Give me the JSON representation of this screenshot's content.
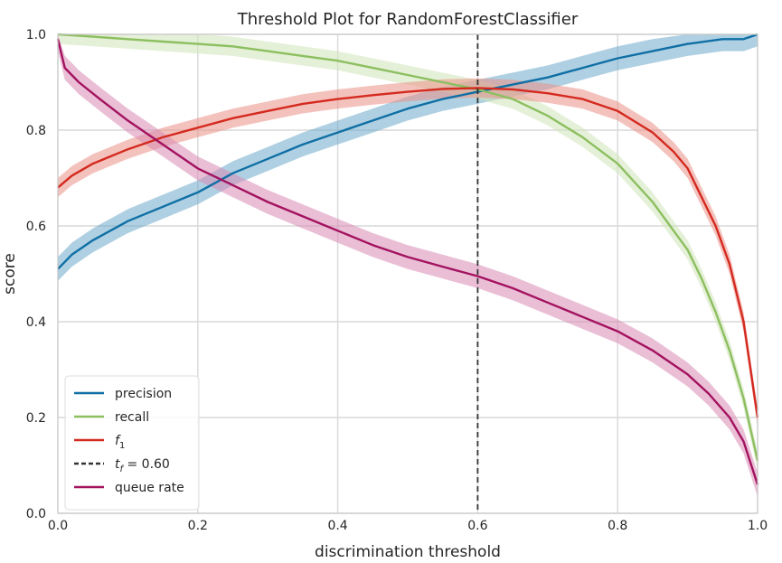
{
  "chart_data": {
    "type": "line",
    "title": "Threshold Plot for RandomForestClassifier",
    "xlabel": "discrimination threshold",
    "ylabel": "score",
    "xlim": [
      0.0,
      1.0
    ],
    "ylim": [
      0.0,
      1.0
    ],
    "xticks": [
      "0.0",
      "0.2",
      "0.4",
      "0.6",
      "0.8",
      "1.0"
    ],
    "yticks": [
      "0.0",
      "0.2",
      "0.4",
      "0.6",
      "0.8",
      "1.0"
    ],
    "grid": true,
    "legend_position": "lower-left",
    "threshold": {
      "value": 0.6,
      "label": "= 0.60",
      "var_main": "t",
      "var_sub": "f",
      "color": "#333333"
    },
    "series": [
      {
        "name": "precision",
        "color": "#0f6fa5",
        "band_color": "#6ea9cb",
        "x": [
          0.0,
          0.02,
          0.05,
          0.1,
          0.15,
          0.2,
          0.25,
          0.3,
          0.35,
          0.4,
          0.45,
          0.5,
          0.55,
          0.6,
          0.65,
          0.7,
          0.75,
          0.8,
          0.85,
          0.9,
          0.95,
          0.98,
          1.0
        ],
        "y": [
          0.51,
          0.54,
          0.57,
          0.61,
          0.64,
          0.67,
          0.71,
          0.74,
          0.77,
          0.795,
          0.82,
          0.845,
          0.865,
          0.88,
          0.895,
          0.91,
          0.93,
          0.95,
          0.965,
          0.98,
          0.99,
          0.99,
          1.0
        ],
        "band": 0.025
      },
      {
        "name": "recall",
        "color": "#8cbf5f",
        "band_color": "#cfe3b8",
        "x": [
          0.0,
          0.05,
          0.1,
          0.15,
          0.2,
          0.25,
          0.3,
          0.35,
          0.4,
          0.45,
          0.5,
          0.55,
          0.6,
          0.65,
          0.7,
          0.75,
          0.8,
          0.85,
          0.88,
          0.9,
          0.92,
          0.94,
          0.96,
          0.98,
          1.0
        ],
        "y": [
          1.0,
          0.995,
          0.99,
          0.985,
          0.98,
          0.975,
          0.965,
          0.955,
          0.945,
          0.93,
          0.915,
          0.9,
          0.885,
          0.865,
          0.83,
          0.785,
          0.73,
          0.65,
          0.59,
          0.55,
          0.49,
          0.42,
          0.34,
          0.24,
          0.11
        ],
        "band": 0.02
      },
      {
        "name": "f1",
        "color": "#d42a1f",
        "band_color": "#eb8f87",
        "x": [
          0.0,
          0.02,
          0.05,
          0.1,
          0.15,
          0.2,
          0.25,
          0.3,
          0.35,
          0.4,
          0.45,
          0.5,
          0.55,
          0.6,
          0.65,
          0.7,
          0.75,
          0.8,
          0.85,
          0.88,
          0.9,
          0.92,
          0.94,
          0.96,
          0.98,
          1.0
        ],
        "y": [
          0.68,
          0.705,
          0.73,
          0.76,
          0.785,
          0.805,
          0.825,
          0.84,
          0.855,
          0.865,
          0.873,
          0.88,
          0.886,
          0.888,
          0.885,
          0.877,
          0.865,
          0.84,
          0.795,
          0.755,
          0.72,
          0.66,
          0.6,
          0.52,
          0.4,
          0.2
        ],
        "band": 0.02
      },
      {
        "name": "queue rate",
        "color": "#a3125f",
        "band_color": "#d98ab5",
        "x": [
          0.0,
          0.01,
          0.03,
          0.06,
          0.1,
          0.15,
          0.2,
          0.25,
          0.3,
          0.35,
          0.4,
          0.45,
          0.5,
          0.55,
          0.6,
          0.65,
          0.7,
          0.75,
          0.8,
          0.85,
          0.9,
          0.93,
          0.96,
          0.98,
          1.0
        ],
        "y": [
          0.99,
          0.93,
          0.9,
          0.865,
          0.82,
          0.77,
          0.72,
          0.685,
          0.65,
          0.62,
          0.59,
          0.56,
          0.535,
          0.515,
          0.495,
          0.47,
          0.44,
          0.41,
          0.38,
          0.34,
          0.29,
          0.25,
          0.2,
          0.15,
          0.06
        ],
        "band": 0.025
      }
    ]
  }
}
